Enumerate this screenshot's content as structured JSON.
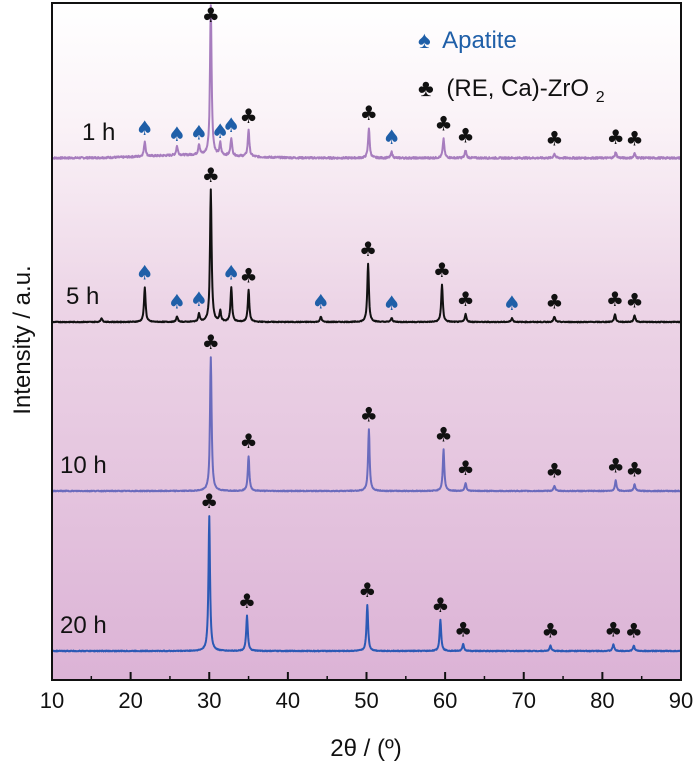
{
  "chart_data": {
    "type": "line",
    "xlabel": "2θ / (º)",
    "ylabel": "Intensity / a.u.",
    "xlim": [
      10,
      90
    ],
    "x_ticks": [
      10,
      20,
      30,
      40,
      50,
      60,
      70,
      80,
      90
    ],
    "grid": false,
    "legend_placement": "top-right",
    "legend": [
      {
        "symbol": "♠",
        "label": "Apatite",
        "color": "#1f5fa8"
      },
      {
        "symbol": "♣",
        "label": "(RE, Ca)-ZrO",
        "subscript": "2",
        "color": "#111111"
      }
    ],
    "series": [
      {
        "name": "1 h",
        "color": "#a77dbe",
        "peaks": [
          {
            "x": 21.8,
            "h": 0.1
          },
          {
            "x": 25.9,
            "h": 0.06
          },
          {
            "x": 28.7,
            "h": 0.07
          },
          {
            "x": 30.2,
            "h": 1.0
          },
          {
            "x": 31.4,
            "h": 0.08
          },
          {
            "x": 32.8,
            "h": 0.12
          },
          {
            "x": 35.0,
            "h": 0.18
          },
          {
            "x": 50.3,
            "h": 0.2
          },
          {
            "x": 53.2,
            "h": 0.04
          },
          {
            "x": 59.8,
            "h": 0.13
          },
          {
            "x": 62.6,
            "h": 0.05
          },
          {
            "x": 73.9,
            "h": 0.03
          },
          {
            "x": 81.7,
            "h": 0.04
          },
          {
            "x": 84.1,
            "h": 0.03
          }
        ],
        "apatite_markers": [
          21.8,
          25.9,
          28.7,
          31.4,
          32.8,
          53.2
        ],
        "zro2_markers": [
          30.2,
          35.0,
          50.3,
          59.8,
          62.6,
          73.9,
          81.7,
          84.1
        ]
      },
      {
        "name": "5 h",
        "color": "#111111",
        "peaks": [
          {
            "x": 16.3,
            "h": 0.03
          },
          {
            "x": 21.8,
            "h": 0.26
          },
          {
            "x": 25.9,
            "h": 0.04
          },
          {
            "x": 28.7,
            "h": 0.06
          },
          {
            "x": 30.2,
            "h": 1.0
          },
          {
            "x": 31.4,
            "h": 0.08
          },
          {
            "x": 32.8,
            "h": 0.26
          },
          {
            "x": 35.0,
            "h": 0.24
          },
          {
            "x": 44.2,
            "h": 0.04
          },
          {
            "x": 50.2,
            "h": 0.44
          },
          {
            "x": 53.2,
            "h": 0.03
          },
          {
            "x": 59.6,
            "h": 0.28
          },
          {
            "x": 62.6,
            "h": 0.06
          },
          {
            "x": 68.5,
            "h": 0.03
          },
          {
            "x": 73.9,
            "h": 0.04
          },
          {
            "x": 81.6,
            "h": 0.06
          },
          {
            "x": 84.1,
            "h": 0.05
          }
        ],
        "apatite_markers": [
          21.8,
          25.9,
          28.7,
          32.8,
          44.2,
          53.2,
          68.5
        ],
        "zro2_markers": [
          30.2,
          35.0,
          50.2,
          59.6,
          62.6,
          73.9,
          81.6,
          84.1
        ]
      },
      {
        "name": "10 h",
        "color": "#6a6bbd",
        "peaks": [
          {
            "x": 30.2,
            "h": 1.0
          },
          {
            "x": 35.0,
            "h": 0.26
          },
          {
            "x": 50.3,
            "h": 0.46
          },
          {
            "x": 59.8,
            "h": 0.31
          },
          {
            "x": 62.6,
            "h": 0.06
          },
          {
            "x": 73.9,
            "h": 0.04
          },
          {
            "x": 81.7,
            "h": 0.08
          },
          {
            "x": 84.1,
            "h": 0.05
          }
        ],
        "zro2_markers": [
          30.2,
          35.0,
          50.3,
          59.8,
          62.6,
          73.9,
          81.7,
          84.1
        ]
      },
      {
        "name": "20 h",
        "color": "#2b59b5",
        "peaks": [
          {
            "x": 30.0,
            "h": 1.0
          },
          {
            "x": 34.8,
            "h": 0.26
          },
          {
            "x": 50.1,
            "h": 0.34
          },
          {
            "x": 59.4,
            "h": 0.23
          },
          {
            "x": 62.3,
            "h": 0.05
          },
          {
            "x": 73.4,
            "h": 0.04
          },
          {
            "x": 81.4,
            "h": 0.05
          },
          {
            "x": 84.0,
            "h": 0.04
          }
        ],
        "zro2_markers": [
          30.0,
          34.8,
          50.1,
          59.4,
          62.3,
          73.4,
          81.4,
          84.0
        ]
      }
    ]
  }
}
